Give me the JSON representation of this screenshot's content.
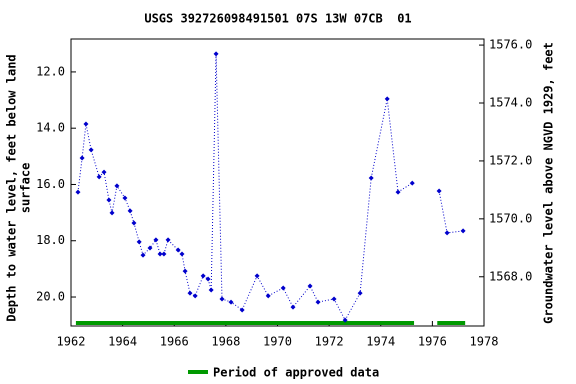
{
  "chart_data": {
    "type": "line",
    "title": "USGS 392726098491501 07S 13W 07CB  01",
    "ylabel": [
      "Depth to water level, feet below land",
      "surface"
    ],
    "y2label": "Groundwater level above NGVD 1929, feet",
    "x": [
      1962.27,
      1962.43,
      1962.58,
      1962.78,
      1963.09,
      1963.28,
      1963.47,
      1963.59,
      1963.78,
      1964.09,
      1964.29,
      1964.44,
      1964.64,
      1964.79,
      1965.06,
      1965.29,
      1965.45,
      1965.6,
      1965.76,
      1966.15,
      1966.3,
      1966.42,
      1966.61,
      1966.81,
      1967.12,
      1967.31,
      1967.43,
      1967.62,
      1967.85,
      1968.2,
      1968.63,
      1969.21,
      1969.64,
      1970.22,
      1970.6,
      1971.26,
      1971.57,
      1972.19,
      1972.62,
      1973.2,
      1973.63,
      1974.25,
      1974.67,
      1975.22,
      null,
      1976.26,
      1976.57,
      1977.19
    ],
    "series": [
      {
        "color": "#0000cc",
        "values": [
          16.27,
          15.06,
          13.85,
          14.77,
          15.73,
          15.56,
          16.55,
          17.01,
          16.05,
          16.48,
          16.94,
          17.37,
          18.04,
          18.51,
          18.26,
          17.97,
          18.47,
          18.47,
          17.97,
          18.33,
          18.47,
          19.08,
          19.86,
          19.96,
          19.25,
          19.36,
          19.75,
          11.36,
          20.07,
          20.18,
          20.46,
          19.25,
          19.96,
          19.68,
          20.36,
          19.61,
          20.18,
          20.07,
          20.82,
          19.86,
          15.77,
          12.96,
          16.27,
          15.95,
          null,
          16.23,
          17.72,
          17.65
        ]
      }
    ],
    "approved_periods": [
      {
        "start": 1962.19,
        "end": 1975.29
      },
      {
        "start": 1976.19,
        "end": 1977.27
      }
    ],
    "approved_color": "#009900",
    "legend": "Period of approved data",
    "xlim": [
      1962,
      1978
    ],
    "xticks": [
      1962,
      1964,
      1966,
      1968,
      1970,
      1972,
      1974,
      1976,
      1978
    ],
    "ylim": [
      21.03,
      10.83
    ],
    "yticks": [
      {
        "value": 12,
        "label": "12.0"
      },
      {
        "value": 14,
        "label": "14.0"
      },
      {
        "value": 16,
        "label": "16.0"
      },
      {
        "value": 18,
        "label": "18.0"
      },
      {
        "value": 20,
        "label": "20.0"
      }
    ],
    "y2lim": [
      1566.3,
      1576.21
    ],
    "y2ticks": [
      {
        "value": 1568,
        "label": "1568.0"
      },
      {
        "value": 1570,
        "label": "1570.0"
      },
      {
        "value": 1572,
        "label": "1572.0"
      },
      {
        "value": 1574,
        "label": "1574.0"
      },
      {
        "value": 1576,
        "label": "1576.0"
      }
    ]
  }
}
